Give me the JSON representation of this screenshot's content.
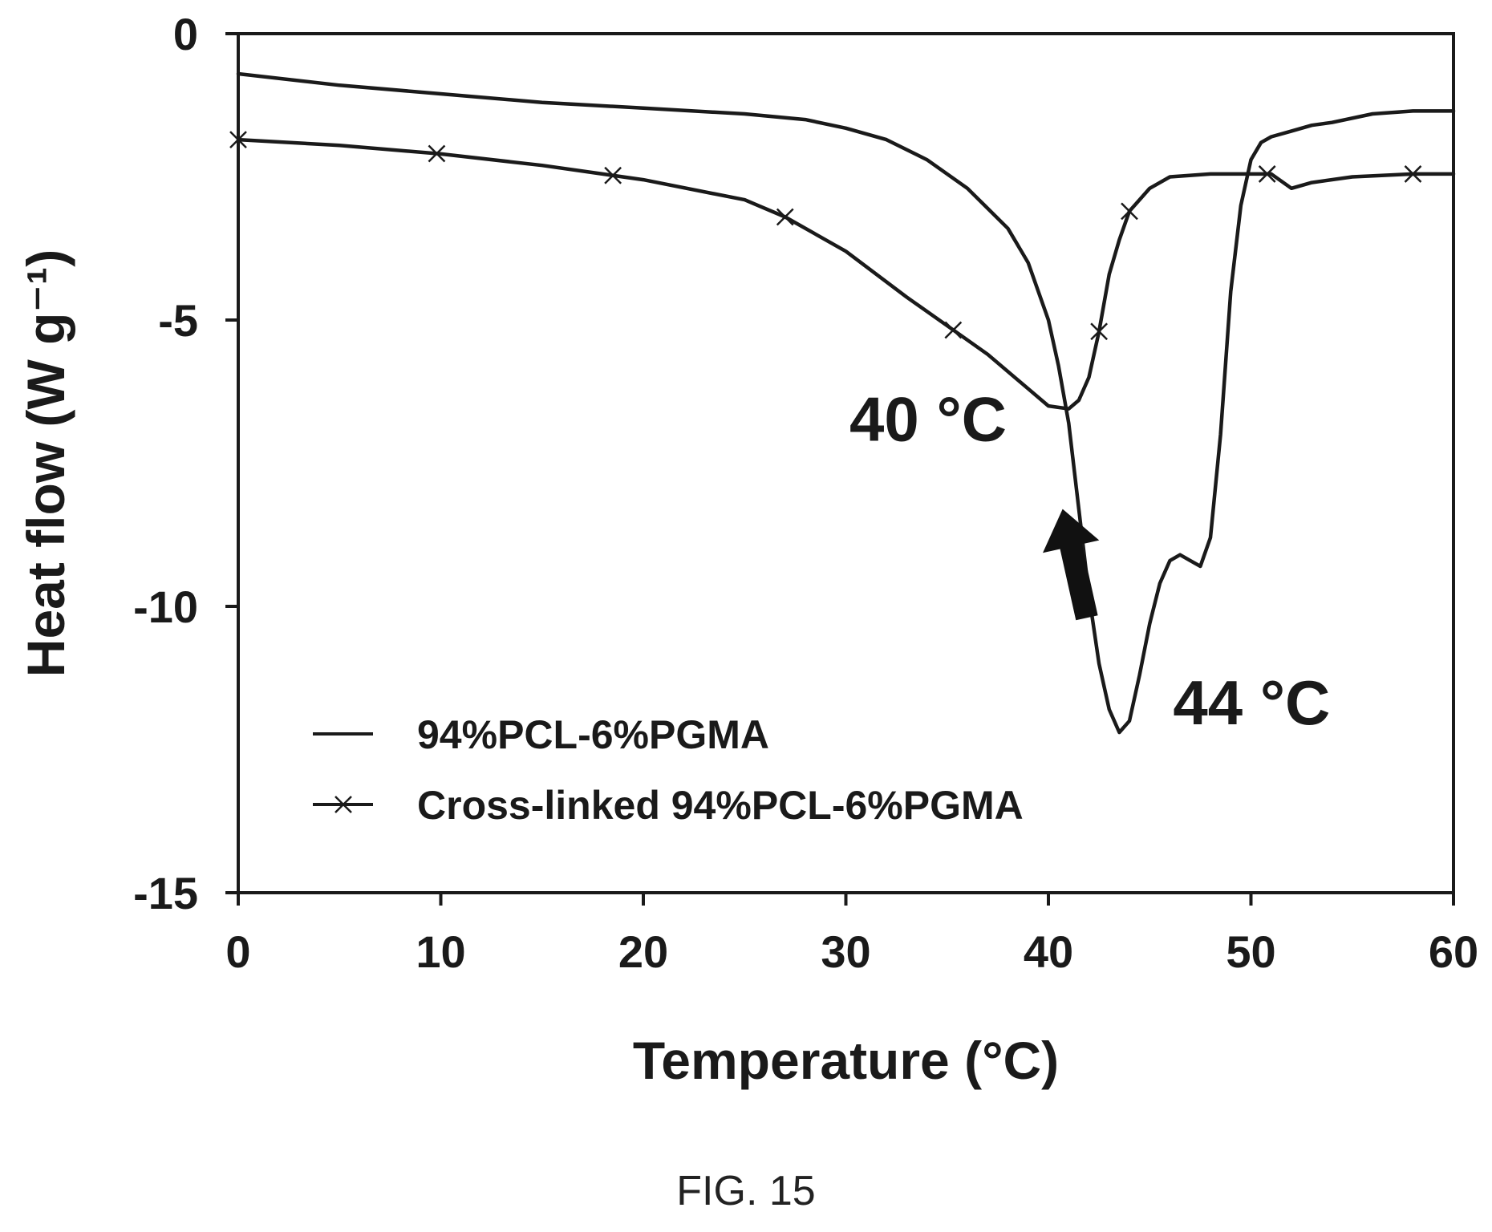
{
  "chart_data": {
    "type": "line",
    "xlabel": "Temperature (°C)",
    "ylabel": "Heat flow (W g⁻¹)",
    "xlim": [
      0,
      60
    ],
    "ylim": [
      -15,
      0
    ],
    "xticks": [
      0,
      10,
      20,
      30,
      40,
      50,
      60
    ],
    "yticks": [
      0,
      -5,
      -10,
      -15
    ],
    "grid": false,
    "legend_position": "bottom-left",
    "series": [
      {
        "name": "94%PCL-6%PGMA",
        "marker": "none",
        "color": "#1a1a1a",
        "points": [
          [
            0,
            -0.7
          ],
          [
            5,
            -0.9
          ],
          [
            10,
            -1.05
          ],
          [
            15,
            -1.2
          ],
          [
            20,
            -1.3
          ],
          [
            25,
            -1.4
          ],
          [
            28,
            -1.5
          ],
          [
            30,
            -1.65
          ],
          [
            32,
            -1.85
          ],
          [
            34,
            -2.2
          ],
          [
            36,
            -2.7
          ],
          [
            38,
            -3.4
          ],
          [
            39,
            -4.0
          ],
          [
            40,
            -5.0
          ],
          [
            40.5,
            -5.8
          ],
          [
            41,
            -6.8
          ],
          [
            41.5,
            -8.3
          ],
          [
            42,
            -9.8
          ],
          [
            42.5,
            -11.0
          ],
          [
            43,
            -11.8
          ],
          [
            43.5,
            -12.2
          ],
          [
            44,
            -12.0
          ],
          [
            44.5,
            -11.2
          ],
          [
            45,
            -10.3
          ],
          [
            45.5,
            -9.6
          ],
          [
            46,
            -9.2
          ],
          [
            46.5,
            -9.1
          ],
          [
            47,
            -9.2
          ],
          [
            47.5,
            -9.3
          ],
          [
            48,
            -8.8
          ],
          [
            48.5,
            -7.0
          ],
          [
            49,
            -4.5
          ],
          [
            49.5,
            -3.0
          ],
          [
            50,
            -2.2
          ],
          [
            50.5,
            -1.9
          ],
          [
            51,
            -1.8
          ],
          [
            52,
            -1.7
          ],
          [
            53,
            -1.6
          ],
          [
            54,
            -1.55
          ],
          [
            56,
            -1.4
          ],
          [
            58,
            -1.35
          ],
          [
            60,
            -1.35
          ]
        ]
      },
      {
        "name": "Cross-linked 94%PCL-6%PGMA",
        "marker": "x",
        "color": "#1a1a1a",
        "points": [
          [
            0,
            -1.85
          ],
          [
            5,
            -1.95
          ],
          [
            10,
            -2.1
          ],
          [
            15,
            -2.3
          ],
          [
            20,
            -2.55
          ],
          [
            25,
            -2.9
          ],
          [
            27,
            -3.2
          ],
          [
            30,
            -3.8
          ],
          [
            33,
            -4.6
          ],
          [
            35,
            -5.1
          ],
          [
            37,
            -5.6
          ],
          [
            39,
            -6.2
          ],
          [
            40,
            -6.5
          ],
          [
            41,
            -6.55
          ],
          [
            41.5,
            -6.4
          ],
          [
            42,
            -6.0
          ],
          [
            42.5,
            -5.2
          ],
          [
            43,
            -4.2
          ],
          [
            43.5,
            -3.6
          ],
          [
            44,
            -3.1
          ],
          [
            45,
            -2.7
          ],
          [
            46,
            -2.5
          ],
          [
            48,
            -2.45
          ],
          [
            50,
            -2.45
          ],
          [
            51,
            -2.45
          ],
          [
            52,
            -2.7
          ],
          [
            53,
            -2.6
          ],
          [
            55,
            -2.5
          ],
          [
            58,
            -2.45
          ],
          [
            60,
            -2.45
          ]
        ],
        "marker_x": [
          0,
          9.8,
          18.5,
          27,
          35.3,
          42.5,
          44,
          50.8,
          58
        ]
      }
    ],
    "annotations": [
      {
        "text": "40 °C",
        "x": 40,
        "y": -6.55,
        "description": "peak of cross-linked curve"
      },
      {
        "text": "44 °C",
        "x": 43.5,
        "y": -12.2,
        "description": "peak of uncross-linked curve"
      }
    ],
    "arrow": {
      "from": [
        41.9,
        -10.2
      ],
      "to": [
        40.7,
        -8.3
      ]
    }
  },
  "figure_caption": "FIG. 15"
}
